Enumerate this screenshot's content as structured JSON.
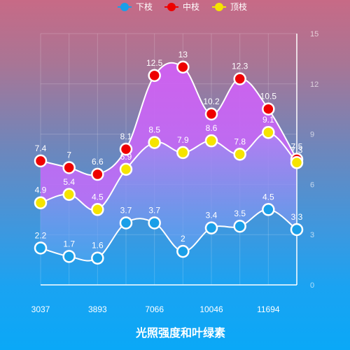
{
  "chart_data": {
    "type": "line",
    "title": "光照强度和叶绿素",
    "x_tick_labels": [
      "3037",
      "3893",
      "7066",
      "10046",
      "11694"
    ],
    "y_ticks": [
      0,
      3,
      6,
      9,
      12,
      15
    ],
    "ylim": [
      0,
      15
    ],
    "y_axis_position": "right",
    "grid": true,
    "legend_position": "top-center",
    "series": [
      {
        "name": "下枝",
        "color": "#1a9fe8",
        "values": [
          2.2,
          1.7,
          1.6,
          3.7,
          3.7,
          2,
          3.4,
          3.5,
          4.5,
          3.3
        ],
        "area_fill": false
      },
      {
        "name": "中枝",
        "color": "#ee0000",
        "values": [
          7.4,
          7,
          6.6,
          8.1,
          12.5,
          13,
          10.2,
          12.3,
          10.5,
          7.5
        ],
        "area_fill": true,
        "area_color": "#c855f5"
      },
      {
        "name": "顶枝",
        "color": "#f5e400",
        "values": [
          4.9,
          5.4,
          4.5,
          6.9,
          8.5,
          7.9,
          8.6,
          7.8,
          9.1,
          7.3
        ],
        "area_fill": true,
        "area_color": "#a783fa"
      }
    ]
  }
}
